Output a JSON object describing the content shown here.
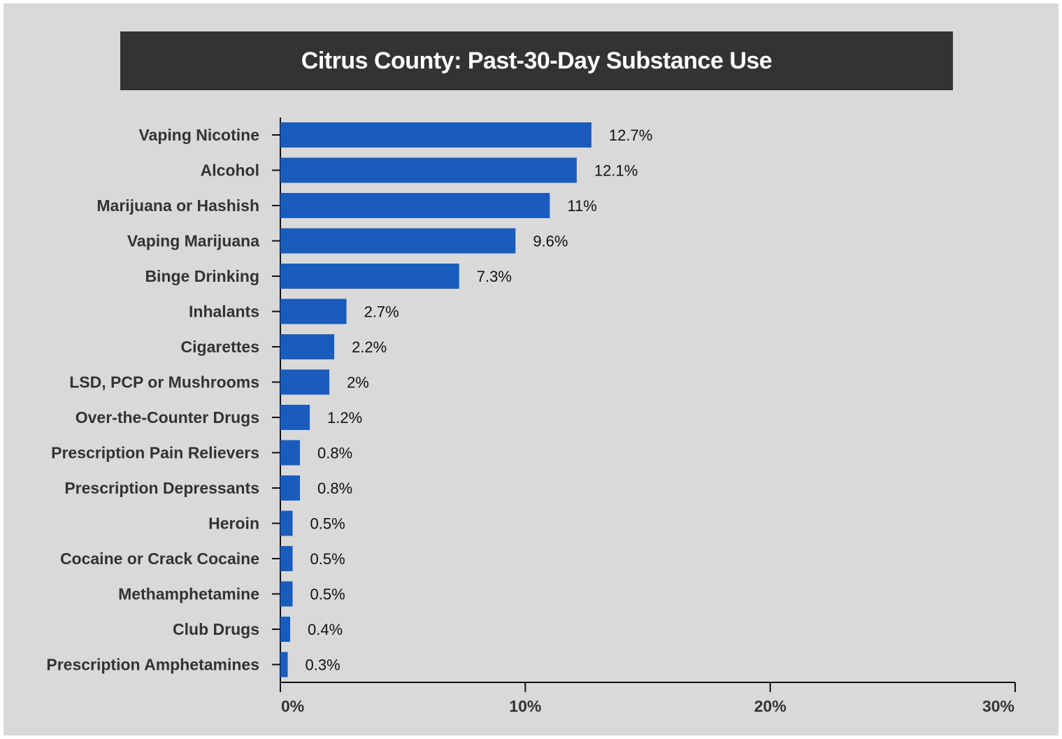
{
  "chart_data": {
    "type": "bar",
    "orientation": "horizontal",
    "title": "Citrus County: Past-30-Day Substance Use",
    "categories": [
      "Vaping Nicotine",
      "Alcohol",
      "Marijuana or Hashish",
      "Vaping Marijuana",
      "Binge Drinking",
      "Inhalants",
      "Cigarettes",
      "LSD, PCP or Mushrooms",
      "Over-the-Counter Drugs",
      "Prescription Pain Relievers",
      "Prescription Depressants",
      "Heroin",
      "Cocaine or Crack Cocaine",
      "Methamphetamine",
      "Club Drugs",
      "Prescription Amphetamines"
    ],
    "values": [
      12.7,
      12.1,
      11,
      9.6,
      7.3,
      2.7,
      2.2,
      2,
      1.2,
      0.8,
      0.8,
      0.5,
      0.5,
      0.5,
      0.4,
      0.3
    ],
    "value_labels": [
      "12.7%",
      "12.1%",
      "11%",
      "9.6%",
      "7.3%",
      "2.7%",
      "2.2%",
      "2%",
      "1.2%",
      "0.8%",
      "0.8%",
      "0.5%",
      "0.5%",
      "0.5%",
      "0.4%",
      "0.3%"
    ],
    "xlim": [
      0,
      30
    ],
    "x_ticks": [
      0,
      10,
      20,
      30
    ],
    "x_tick_labels": [
      "0%",
      "10%",
      "20%",
      "30%"
    ],
    "xlabel": "",
    "ylabel": "",
    "grid": false,
    "colors": {
      "bar": "#1a5cbb",
      "background": "#d9d9d9",
      "title_bar": "#333333"
    }
  }
}
